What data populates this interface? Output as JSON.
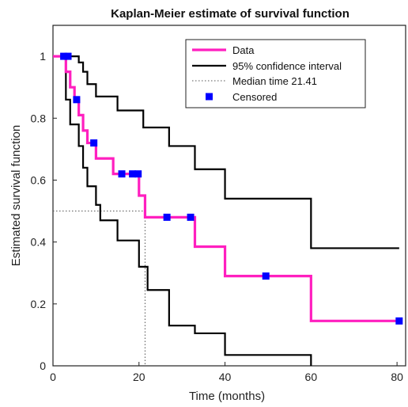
{
  "chart_data": {
    "type": "line",
    "title": "Kaplan-Meier estimate of survival function",
    "xlabel": "Time (months)",
    "ylabel": "Estimated survival function",
    "xlim": [
      0,
      82
    ],
    "ylim": [
      0,
      1.1
    ],
    "xticks": [
      0,
      20,
      40,
      60,
      80
    ],
    "yticks": [
      0,
      0.2,
      0.4,
      0.6,
      0.8,
      1
    ],
    "xtick_labels": [
      "0",
      "20",
      "40",
      "60",
      "80"
    ],
    "ytick_labels": [
      "0",
      "0.2",
      "0.4",
      "0.6",
      "0.8",
      "1"
    ],
    "grid": false,
    "legend_placement": "top-right",
    "colors": {
      "data": "#ff1fbf",
      "ci": "#000000",
      "median": "#555555",
      "censored": "#0000ff"
    },
    "series": [
      {
        "name": "Data",
        "step": true,
        "points": [
          [
            0,
            1
          ],
          [
            3,
            1
          ],
          [
            3,
            0.95
          ],
          [
            4,
            0.95
          ],
          [
            4,
            0.9
          ],
          [
            5,
            0.9
          ],
          [
            5,
            0.86
          ],
          [
            6,
            0.86
          ],
          [
            6,
            0.81
          ],
          [
            7,
            0.81
          ],
          [
            7,
            0.76
          ],
          [
            8,
            0.76
          ],
          [
            8,
            0.72
          ],
          [
            10,
            0.72
          ],
          [
            10,
            0.67
          ],
          [
            14,
            0.67
          ],
          [
            14,
            0.62
          ],
          [
            20,
            0.62
          ],
          [
            20,
            0.55
          ],
          [
            21.41,
            0.55
          ],
          [
            21.41,
            0.48
          ],
          [
            33,
            0.48
          ],
          [
            33,
            0.385
          ],
          [
            40,
            0.385
          ],
          [
            40,
            0.29
          ],
          [
            60,
            0.29
          ],
          [
            60,
            0.145
          ],
          [
            80.5,
            0.145
          ]
        ]
      },
      {
        "name": "95% confidence interval",
        "step": true,
        "points": [
          [
            0,
            1
          ],
          [
            6,
            1
          ],
          [
            6,
            0.98
          ],
          [
            7,
            0.98
          ],
          [
            7,
            0.95
          ],
          [
            8,
            0.95
          ],
          [
            8,
            0.91
          ],
          [
            10,
            0.91
          ],
          [
            10,
            0.87
          ],
          [
            15,
            0.87
          ],
          [
            15,
            0.825
          ],
          [
            21,
            0.825
          ],
          [
            21,
            0.77
          ],
          [
            27,
            0.77
          ],
          [
            27,
            0.71
          ],
          [
            33,
            0.71
          ],
          [
            33,
            0.635
          ],
          [
            40,
            0.635
          ],
          [
            40,
            0.54
          ],
          [
            60,
            0.54
          ],
          [
            60,
            0.38
          ],
          [
            80.5,
            0.38
          ]
        ]
      },
      {
        "name": "",
        "step": true,
        "points": [
          [
            0,
            1
          ],
          [
            3,
            1
          ],
          [
            3,
            0.86
          ],
          [
            4,
            0.86
          ],
          [
            4,
            0.78
          ],
          [
            6,
            0.78
          ],
          [
            6,
            0.71
          ],
          [
            7,
            0.71
          ],
          [
            7,
            0.64
          ],
          [
            8,
            0.64
          ],
          [
            8,
            0.58
          ],
          [
            10,
            0.58
          ],
          [
            10,
            0.52
          ],
          [
            11,
            0.52
          ],
          [
            11,
            0.47
          ],
          [
            15,
            0.47
          ],
          [
            15,
            0.405
          ],
          [
            20,
            0.405
          ],
          [
            20,
            0.32
          ],
          [
            22,
            0.32
          ],
          [
            22,
            0.245
          ],
          [
            27,
            0.245
          ],
          [
            27,
            0.13
          ],
          [
            33,
            0.13
          ],
          [
            33,
            0.105
          ],
          [
            40,
            0.105
          ],
          [
            40,
            0.035
          ],
          [
            60,
            0.035
          ],
          [
            60,
            0
          ]
        ]
      }
    ],
    "median": {
      "name": "Median time 21.41",
      "x": 21.41,
      "y": 0.5
    },
    "censored": {
      "name": "Censored",
      "points": [
        [
          2.5,
          1
        ],
        [
          3.5,
          1
        ],
        [
          5.5,
          0.86
        ],
        [
          9.5,
          0.72
        ],
        [
          16,
          0.62
        ],
        [
          18.5,
          0.62
        ],
        [
          19.8,
          0.62
        ],
        [
          26.5,
          0.48
        ],
        [
          32,
          0.48
        ],
        [
          49.5,
          0.29
        ],
        [
          80.5,
          0.145
        ]
      ]
    }
  }
}
